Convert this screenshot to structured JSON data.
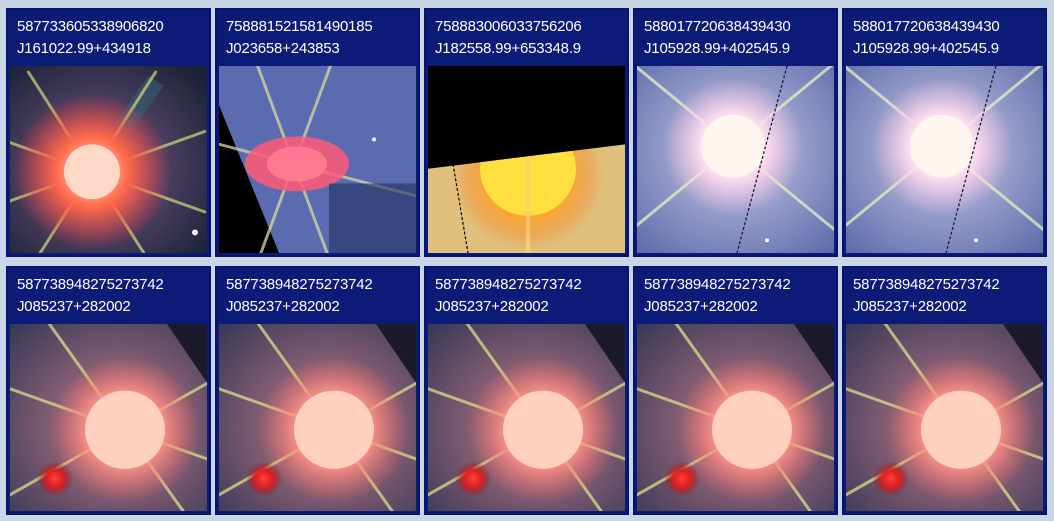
{
  "cells": [
    {
      "objid": "587733605338906820",
      "name": "J161022.99+434918",
      "style": "redgiant"
    },
    {
      "objid": "758881521581490185",
      "name": "J023658+243853",
      "style": "pinkedge"
    },
    {
      "objid": "758883006033756206",
      "name": "J182558.99+653348.9",
      "style": "yellowedge"
    },
    {
      "objid": "588017720638439430",
      "name": "J105928.99+402545.9",
      "style": "whiteblue"
    },
    {
      "objid": "588017720638439430",
      "name": "J105928.99+402545.9",
      "style": "whiteblue"
    },
    {
      "objid": "587738948275273742",
      "name": "J085237+282002",
      "style": "peach"
    },
    {
      "objid": "587738948275273742",
      "name": "J085237+282002",
      "style": "peach"
    },
    {
      "objid": "587738948275273742",
      "name": "J085237+282002",
      "style": "peach"
    },
    {
      "objid": "587738948275273742",
      "name": "J085237+282002",
      "style": "peach"
    },
    {
      "objid": "587738948275273742",
      "name": "J085237+282002",
      "style": "peach"
    }
  ]
}
